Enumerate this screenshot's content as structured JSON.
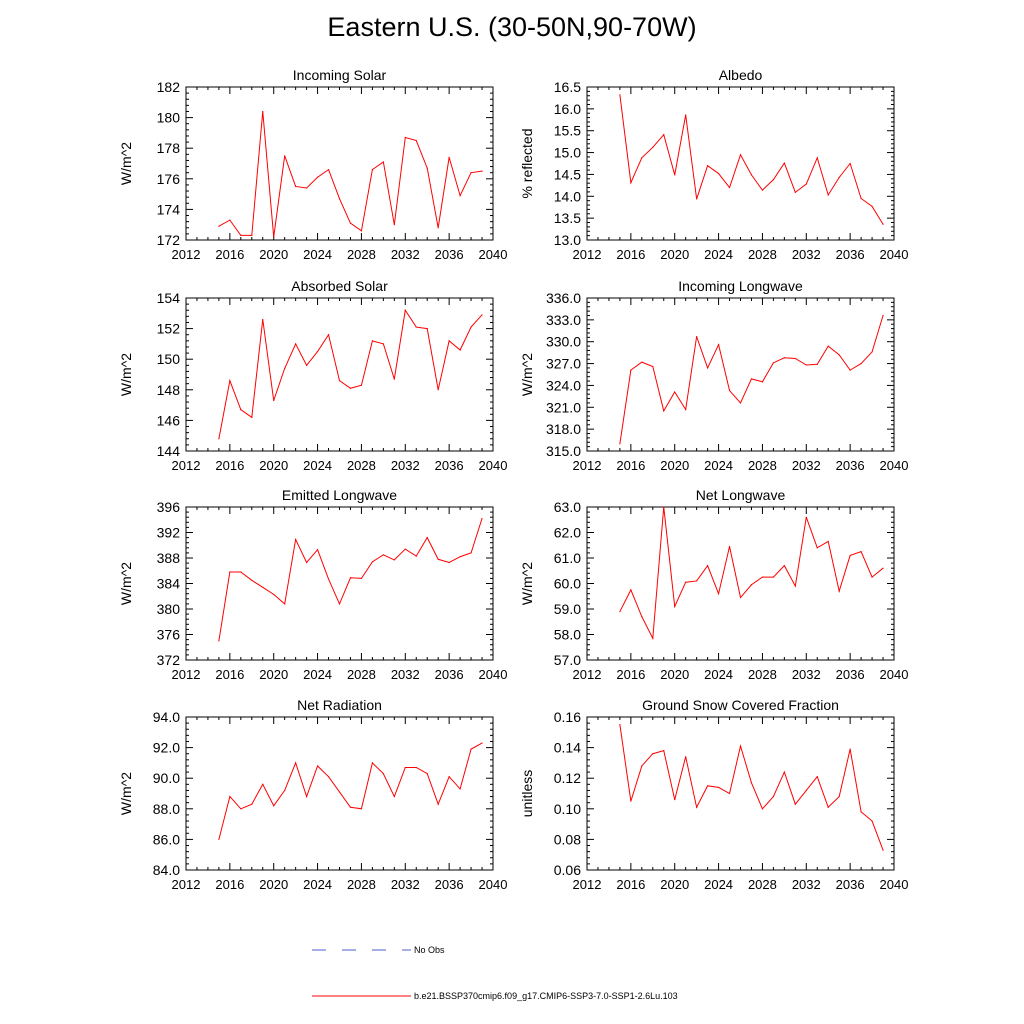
{
  "figure": {
    "title": "Eastern U.S. (30-50N,90-70W)"
  },
  "colors": {
    "series": "#ff0000",
    "obs": "#4f5fd0",
    "axis": "#000000"
  },
  "legend": {
    "obs_label": "No Obs",
    "model_label": "b.e21.BSSP370cmip6.f09_g17.CMIP6-SSP3-7.0-SSP1-2.6Lu.103"
  },
  "chart_data": [
    {
      "type": "line",
      "title": "Incoming Solar",
      "ylabel": "W/m^2",
      "xlabel": "",
      "xlim": [
        2012,
        2040
      ],
      "ylim": [
        172,
        182
      ],
      "xticks": [
        2012,
        2016,
        2020,
        2024,
        2028,
        2032,
        2036,
        2040
      ],
      "yticks": [
        "172",
        "174",
        "176",
        "178",
        "180",
        "182"
      ],
      "x": [
        2015,
        2016,
        2017,
        2018,
        2019,
        2020,
        2021,
        2022,
        2023,
        2024,
        2025,
        2026,
        2027,
        2028,
        2029,
        2030,
        2031,
        2032,
        2033,
        2034,
        2035,
        2036,
        2037,
        2038,
        2039
      ],
      "values": [
        172.9,
        173.3,
        172.3,
        172.3,
        180.4,
        172.2,
        177.5,
        175.5,
        175.4,
        176.1,
        176.6,
        174.7,
        173.1,
        172.6,
        176.6,
        177.1,
        173.0,
        178.7,
        178.5,
        176.7,
        172.8,
        177.4,
        174.9,
        176.4,
        176.5
      ]
    },
    {
      "type": "line",
      "title": "Albedo",
      "ylabel": "% reflected",
      "xlabel": "",
      "xlim": [
        2012,
        2040
      ],
      "ylim": [
        13.0,
        16.5
      ],
      "xticks": [
        2012,
        2016,
        2020,
        2024,
        2028,
        2032,
        2036,
        2040
      ],
      "yticks": [
        "13.0",
        "13.5",
        "14.0",
        "14.5",
        "15.0",
        "15.5",
        "16.0",
        "16.5"
      ],
      "x": [
        2015,
        2016,
        2017,
        2018,
        2019,
        2020,
        2021,
        2022,
        2023,
        2024,
        2025,
        2026,
        2027,
        2028,
        2029,
        2030,
        2031,
        2032,
        2033,
        2034,
        2035,
        2036,
        2037,
        2038,
        2039
      ],
      "values": [
        16.32,
        14.31,
        14.88,
        15.12,
        15.41,
        14.49,
        15.86,
        13.94,
        14.7,
        14.52,
        14.2,
        14.95,
        14.49,
        14.14,
        14.38,
        14.76,
        14.09,
        14.28,
        14.88,
        14.03,
        14.43,
        14.75,
        13.95,
        13.77,
        13.36
      ]
    },
    {
      "type": "line",
      "title": "Absorbed Solar",
      "ylabel": "W/m^2",
      "xlabel": "",
      "xlim": [
        2012,
        2040
      ],
      "ylim": [
        144,
        154
      ],
      "xticks": [
        2012,
        2016,
        2020,
        2024,
        2028,
        2032,
        2036,
        2040
      ],
      "yticks": [
        "144",
        "146",
        "148",
        "150",
        "152",
        "154"
      ],
      "x": [
        2015,
        2016,
        2017,
        2018,
        2019,
        2020,
        2021,
        2022,
        2023,
        2024,
        2025,
        2026,
        2027,
        2028,
        2029,
        2030,
        2031,
        2032,
        2033,
        2034,
        2035,
        2036,
        2037,
        2038,
        2039
      ],
      "values": [
        144.8,
        148.6,
        146.7,
        146.2,
        152.6,
        147.3,
        149.4,
        151.0,
        149.6,
        150.5,
        151.6,
        148.6,
        148.1,
        148.3,
        151.2,
        151.0,
        148.7,
        153.2,
        152.1,
        152.0,
        148.0,
        151.2,
        150.6,
        152.1,
        152.9
      ]
    },
    {
      "type": "line",
      "title": "Incoming Longwave",
      "ylabel": "W/m^2",
      "xlabel": "",
      "xlim": [
        2012,
        2040
      ],
      "ylim": [
        315,
        336
      ],
      "xticks": [
        2012,
        2016,
        2020,
        2024,
        2028,
        2032,
        2036,
        2040
      ],
      "yticks": [
        "315.0",
        "318.0",
        "321.0",
        "324.0",
        "327.0",
        "330.0",
        "333.0",
        "336.0"
      ],
      "x": [
        2015,
        2016,
        2017,
        2018,
        2019,
        2020,
        2021,
        2022,
        2023,
        2024,
        2025,
        2026,
        2027,
        2028,
        2029,
        2030,
        2031,
        2032,
        2033,
        2034,
        2035,
        2036,
        2037,
        2038,
        2039
      ],
      "values": [
        316.0,
        326.1,
        327.2,
        326.6,
        320.5,
        323.1,
        320.7,
        330.7,
        326.4,
        329.6,
        323.3,
        321.6,
        324.9,
        324.5,
        327.1,
        327.8,
        327.7,
        326.8,
        326.9,
        329.4,
        328.2,
        326.1,
        327.0,
        328.6,
        333.6
      ]
    },
    {
      "type": "line",
      "title": "Emitted Longwave",
      "ylabel": "W/m^2",
      "xlabel": "",
      "xlim": [
        2012,
        2040
      ],
      "ylim": [
        372,
        396
      ],
      "xticks": [
        2012,
        2016,
        2020,
        2024,
        2028,
        2032,
        2036,
        2040
      ],
      "yticks": [
        "372",
        "376",
        "380",
        "384",
        "388",
        "392",
        "396"
      ],
      "x": [
        2015,
        2016,
        2017,
        2018,
        2019,
        2020,
        2021,
        2022,
        2023,
        2024,
        2025,
        2026,
        2027,
        2028,
        2029,
        2030,
        2031,
        2032,
        2033,
        2034,
        2035,
        2036,
        2037,
        2038,
        2039
      ],
      "values": [
        375.0,
        385.8,
        385.8,
        384.5,
        383.4,
        382.3,
        380.8,
        390.9,
        387.3,
        389.3,
        384.7,
        380.8,
        384.9,
        384.8,
        387.4,
        388.5,
        387.7,
        389.4,
        388.3,
        391.2,
        387.8,
        387.3,
        388.2,
        388.8,
        394.2
      ]
    },
    {
      "type": "line",
      "title": "Net Longwave",
      "ylabel": "W/m^2",
      "xlabel": "",
      "xlim": [
        2012,
        2040
      ],
      "ylim": [
        57,
        63
      ],
      "xticks": [
        2012,
        2016,
        2020,
        2024,
        2028,
        2032,
        2036,
        2040
      ],
      "yticks": [
        "57.0",
        "58.0",
        "59.0",
        "60.0",
        "61.0",
        "62.0",
        "63.0"
      ],
      "x": [
        2015,
        2016,
        2017,
        2018,
        2019,
        2020,
        2021,
        2022,
        2023,
        2024,
        2025,
        2026,
        2027,
        2028,
        2029,
        2030,
        2031,
        2032,
        2033,
        2034,
        2035,
        2036,
        2037,
        2038,
        2039
      ],
      "values": [
        58.9,
        59.75,
        58.7,
        57.85,
        63.0,
        59.1,
        60.05,
        60.1,
        60.7,
        59.6,
        61.45,
        59.45,
        59.95,
        60.25,
        60.25,
        60.7,
        59.9,
        62.6,
        61.4,
        61.65,
        59.7,
        61.1,
        61.25,
        60.25,
        60.6
      ]
    },
    {
      "type": "line",
      "title": "Net Radiation",
      "ylabel": "W/m^2",
      "xlabel": "",
      "xlim": [
        2012,
        2040
      ],
      "ylim": [
        84,
        94
      ],
      "xticks": [
        2012,
        2016,
        2020,
        2024,
        2028,
        2032,
        2036,
        2040
      ],
      "yticks": [
        "84.0",
        "86.0",
        "88.0",
        "90.0",
        "92.0",
        "94.0"
      ],
      "x": [
        2015,
        2016,
        2017,
        2018,
        2019,
        2020,
        2021,
        2022,
        2023,
        2024,
        2025,
        2026,
        2027,
        2028,
        2029,
        2030,
        2031,
        2032,
        2033,
        2034,
        2035,
        2036,
        2037,
        2038,
        2039
      ],
      "values": [
        86.0,
        88.8,
        88.0,
        88.3,
        89.6,
        88.2,
        89.2,
        91.0,
        88.8,
        90.8,
        90.1,
        89.1,
        88.1,
        88.0,
        91.0,
        90.3,
        88.8,
        90.7,
        90.7,
        90.3,
        88.3,
        90.1,
        89.3,
        91.9,
        92.3
      ]
    },
    {
      "type": "line",
      "title": "Ground Snow Covered Fraction",
      "ylabel": "unitless",
      "xlabel": "",
      "xlim": [
        2012,
        2040
      ],
      "ylim": [
        0.06,
        0.16
      ],
      "xticks": [
        2012,
        2016,
        2020,
        2024,
        2028,
        2032,
        2036,
        2040
      ],
      "yticks": [
        "0.06",
        "0.08",
        "0.10",
        "0.12",
        "0.14",
        "0.16"
      ],
      "x": [
        2015,
        2016,
        2017,
        2018,
        2019,
        2020,
        2021,
        2022,
        2023,
        2024,
        2025,
        2026,
        2027,
        2028,
        2029,
        2030,
        2031,
        2032,
        2033,
        2034,
        2035,
        2036,
        2037,
        2038,
        2039
      ],
      "values": [
        0.155,
        0.105,
        0.128,
        0.136,
        0.138,
        0.106,
        0.134,
        0.101,
        0.115,
        0.114,
        0.11,
        0.141,
        0.117,
        0.1,
        0.108,
        0.124,
        0.103,
        0.112,
        0.121,
        0.101,
        0.108,
        0.139,
        0.098,
        0.092,
        0.073
      ]
    }
  ]
}
